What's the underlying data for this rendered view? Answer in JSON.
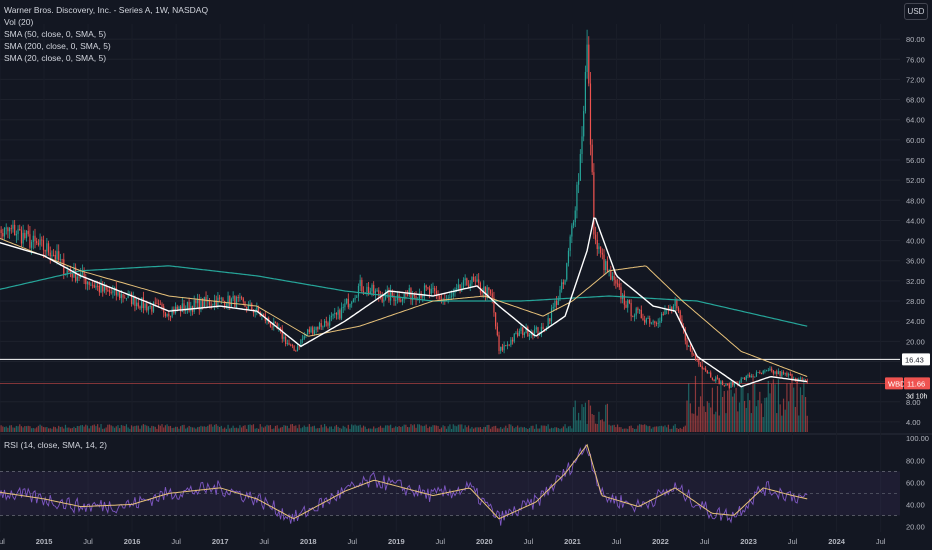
{
  "legend": {
    "title": "Warner Bros. Discovery, Inc. - Series A, 1W, NASDAQ",
    "vol": "Vol (20)",
    "sma50": "SMA (50, close, 0, SMA, 5)",
    "sma200": "SMA (200, close, 0, SMA, 5)",
    "sma20": "SMA (20, close, 0, SMA, 5)",
    "rsi": "RSI (14, close, SMA, 14, 2)"
  },
  "currency": "USD",
  "colors": {
    "background": "#131722",
    "up": "#26a69a",
    "down": "#ef5350",
    "sma20": "#ffffff",
    "sma50": "#e8c27a",
    "sma200": "#26a69a",
    "rsi": "#7e57c2",
    "rsi_ma": "#e8c27a",
    "hline": "#ffffff",
    "last_price_line": "#ef5350"
  },
  "labels": {
    "hline_value": "16.43",
    "ticker_tag": "WBD",
    "last_price": "11.66",
    "countdown": "3d 10h"
  },
  "chart_data": [
    {
      "type": "candlestick",
      "title": "Warner Bros. Discovery, Inc. - Series A, 1W, NASDAQ",
      "x_axis": [
        "Jul",
        "2015",
        "Jul",
        "2016",
        "Jul",
        "2017",
        "Jul",
        "2018",
        "Jul",
        "2019",
        "Jul",
        "2020",
        "Jul",
        "2021",
        "Jul",
        "2022",
        "Jul",
        "2023",
        "Jul",
        "2024",
        "Jul"
      ],
      "y_ticks": [
        "80.00",
        "76.00",
        "72.00",
        "68.00",
        "64.00",
        "60.00",
        "56.00",
        "52.00",
        "48.00",
        "44.00",
        "40.00",
        "36.00",
        "32.00",
        "28.00",
        "24.00",
        "20.00",
        "16.00",
        "12.00",
        "8.00",
        "4.00"
      ],
      "ylim": [
        2,
        83
      ],
      "horizontal_line": 16.43,
      "last_price": 11.66,
      "close_points": [
        [
          "2014-06",
          41
        ],
        [
          "2014-09",
          42
        ],
        [
          "2014-12",
          39
        ],
        [
          "2015-02",
          38
        ],
        [
          "2015-04",
          34
        ],
        [
          "2015-06",
          33
        ],
        [
          "2015-09",
          30
        ],
        [
          "2015-12",
          29
        ],
        [
          "2016-03",
          27
        ],
        [
          "2016-06",
          26
        ],
        [
          "2016-09",
          27
        ],
        [
          "2016-12",
          28
        ],
        [
          "2017-03",
          28
        ],
        [
          "2017-06",
          26
        ],
        [
          "2017-09",
          22
        ],
        [
          "2017-11",
          18
        ],
        [
          "2018-01",
          22
        ],
        [
          "2018-05",
          25
        ],
        [
          "2018-08",
          31
        ],
        [
          "2018-11",
          29
        ],
        [
          "2019-02",
          29
        ],
        [
          "2019-05",
          30
        ],
        [
          "2019-08",
          28
        ],
        [
          "2019-11",
          32
        ],
        [
          "2020-02",
          29
        ],
        [
          "2020-03",
          18
        ],
        [
          "2020-06",
          22
        ],
        [
          "2020-09",
          22
        ],
        [
          "2020-12",
          32
        ],
        [
          "2021-02",
          55
        ],
        [
          "2021-03",
          78
        ],
        [
          "2021-04",
          40
        ],
        [
          "2021-06",
          33
        ],
        [
          "2021-09",
          26
        ],
        [
          "2021-12",
          24
        ],
        [
          "2022-03",
          27
        ],
        [
          "2022-05",
          18
        ],
        [
          "2022-08",
          13
        ],
        [
          "2022-10",
          11
        ],
        [
          "2023-01",
          13
        ],
        [
          "2023-04",
          14
        ],
        [
          "2023-07",
          13
        ],
        [
          "2023-09",
          11.66
        ]
      ],
      "sma20_points": [
        [
          "2014-06",
          40
        ],
        [
          "2015-01",
          37
        ],
        [
          "2015-06",
          33
        ],
        [
          "2016-01",
          29
        ],
        [
          "2016-06",
          26
        ],
        [
          "2017-01",
          27
        ],
        [
          "2017-06",
          26
        ],
        [
          "2017-12",
          19
        ],
        [
          "2018-06",
          24
        ],
        [
          "2018-12",
          30
        ],
        [
          "2019-06",
          29
        ],
        [
          "2019-12",
          31
        ],
        [
          "2020-03",
          27
        ],
        [
          "2020-08",
          21
        ],
        [
          "2020-12",
          25
        ],
        [
          "2021-03",
          38
        ],
        [
          "2021-04",
          45
        ],
        [
          "2021-07",
          33
        ],
        [
          "2021-12",
          27
        ],
        [
          "2022-03",
          26
        ],
        [
          "2022-06",
          17
        ],
        [
          "2022-12",
          11
        ],
        [
          "2023-04",
          13
        ],
        [
          "2023-09",
          12
        ]
      ],
      "sma50_points": [
        [
          "2014-06",
          41
        ],
        [
          "2015-06",
          34
        ],
        [
          "2016-06",
          29
        ],
        [
          "2017-06",
          27
        ],
        [
          "2018-01",
          21
        ],
        [
          "2018-08",
          23
        ],
        [
          "2019-06",
          28
        ],
        [
          "2020-01",
          29
        ],
        [
          "2020-09",
          25
        ],
        [
          "2021-01",
          28
        ],
        [
          "2021-06",
          34
        ],
        [
          "2021-11",
          35
        ],
        [
          "2022-04",
          28
        ],
        [
          "2022-12",
          18
        ],
        [
          "2023-09",
          13
        ]
      ],
      "sma200_points": [
        [
          "2014-06",
          30
        ],
        [
          "2015-06",
          34
        ],
        [
          "2016-06",
          35
        ],
        [
          "2017-06",
          33
        ],
        [
          "2018-06",
          30
        ],
        [
          "2019-06",
          28
        ],
        [
          "2020-06",
          28
        ],
        [
          "2021-06",
          29
        ],
        [
          "2022-06",
          28
        ],
        [
          "2023-09",
          23
        ]
      ]
    },
    {
      "type": "line",
      "title": "RSI (14, close, SMA, 14, 2)",
      "y_ticks": [
        "100.00",
        "80.00",
        "60.00",
        "40.00",
        "20.00"
      ],
      "ylim": [
        15,
        102
      ],
      "bands": [
        30,
        50,
        70
      ],
      "rsi_points": [
        [
          "2014-06",
          52
        ],
        [
          "2015-01",
          45
        ],
        [
          "2015-06",
          38
        ],
        [
          "2016-01",
          40
        ],
        [
          "2016-06",
          50
        ],
        [
          "2017-01",
          55
        ],
        [
          "2017-06",
          45
        ],
        [
          "2017-11",
          27
        ],
        [
          "2018-06",
          52
        ],
        [
          "2018-10",
          62
        ],
        [
          "2019-06",
          48
        ],
        [
          "2019-11",
          55
        ],
        [
          "2020-03",
          27
        ],
        [
          "2020-08",
          42
        ],
        [
          "2020-12",
          68
        ],
        [
          "2021-03",
          94
        ],
        [
          "2021-05",
          48
        ],
        [
          "2021-10",
          38
        ],
        [
          "2022-03",
          55
        ],
        [
          "2022-08",
          32
        ],
        [
          "2022-11",
          30
        ],
        [
          "2023-03",
          55
        ],
        [
          "2023-07",
          48
        ],
        [
          "2023-09",
          45
        ]
      ]
    }
  ]
}
